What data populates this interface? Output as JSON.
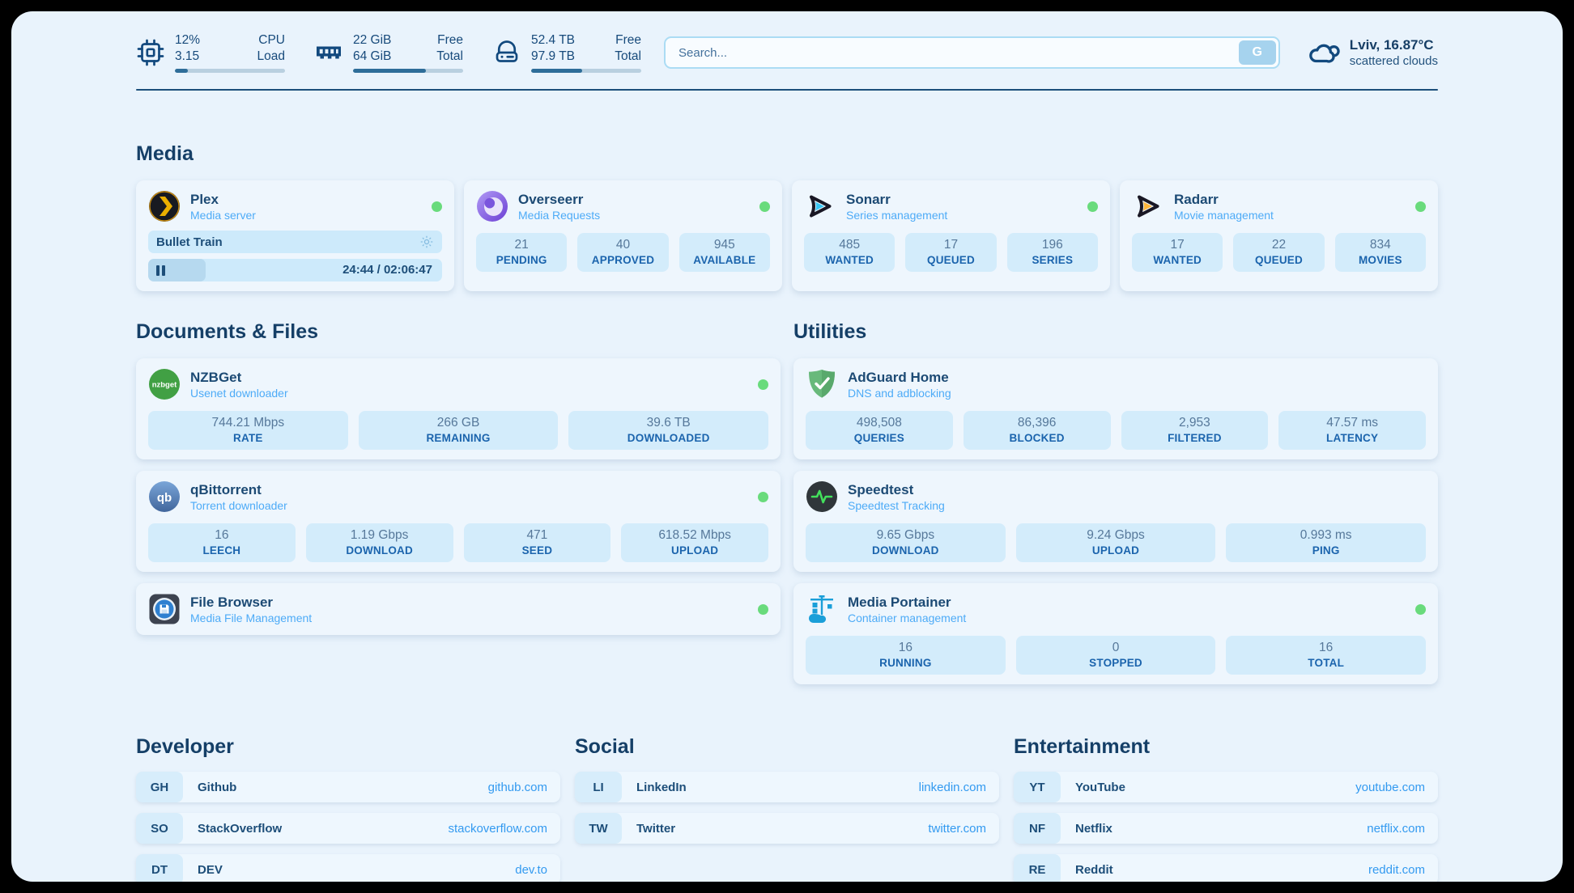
{
  "colors": {
    "page_bg": "#e9f3fc",
    "card_bg": "#eef6fd",
    "stat_box_bg": "#d3ecfb",
    "navy_text": "#1d4e79",
    "subtitle_blue": "#4dabf7",
    "url_blue": "#339af0",
    "status_online_green": "#69db7c",
    "progress_fill": "#2e6d99"
  },
  "header": {
    "cpu": {
      "value1": "12%",
      "label1": "CPU",
      "value2": "3.15",
      "label2": "Load",
      "progress": 12
    },
    "ram": {
      "value1": "22 GiB",
      "label1": "Free",
      "value2": "64 GiB",
      "label2": "Total",
      "progress": 66
    },
    "disk": {
      "value1": "52.4 TB",
      "label1": "Free",
      "value2": "97.9 TB",
      "label2": "Total",
      "progress": 46
    },
    "search": {
      "placeholder": "Search...",
      "button_label": "G"
    },
    "weather": {
      "location": "Lviv, 16.87°C",
      "condition": "scattered clouds"
    }
  },
  "media": {
    "title": "Media",
    "plex": {
      "name": "Plex",
      "subtitle": "Media server",
      "status": "online",
      "now_playing": "Bullet Train",
      "time": "24:44 / 02:06:47",
      "progress": 19.6
    },
    "overseerr": {
      "name": "Overseerr",
      "subtitle": "Media Requests",
      "status": "online",
      "stats": [
        {
          "value": "21",
          "label": "PENDING"
        },
        {
          "value": "40",
          "label": "APPROVED"
        },
        {
          "value": "945",
          "label": "AVAILABLE"
        }
      ]
    },
    "sonarr": {
      "name": "Sonarr",
      "subtitle": "Series management",
      "status": "online",
      "stats": [
        {
          "value": "485",
          "label": "WANTED"
        },
        {
          "value": "17",
          "label": "QUEUED"
        },
        {
          "value": "196",
          "label": "SERIES"
        }
      ]
    },
    "radarr": {
      "name": "Radarr",
      "subtitle": "Movie management",
      "status": "online",
      "stats": [
        {
          "value": "17",
          "label": "WANTED"
        },
        {
          "value": "22",
          "label": "QUEUED"
        },
        {
          "value": "834",
          "label": "MOVIES"
        }
      ]
    }
  },
  "documents": {
    "title": "Documents & Files",
    "nzbget": {
      "name": "NZBGet",
      "subtitle": "Usenet downloader",
      "status": "online",
      "stats": [
        {
          "value": "744.21 Mbps",
          "label": "RATE"
        },
        {
          "value": "266 GB",
          "label": "REMAINING"
        },
        {
          "value": "39.6 TB",
          "label": "DOWNLOADED"
        }
      ]
    },
    "qbittorrent": {
      "name": "qBittorrent",
      "subtitle": "Torrent downloader",
      "status": "online",
      "stats": [
        {
          "value": "16",
          "label": "LEECH"
        },
        {
          "value": "1.19 Gbps",
          "label": "DOWNLOAD"
        },
        {
          "value": "471",
          "label": "SEED"
        },
        {
          "value": "618.52 Mbps",
          "label": "UPLOAD"
        }
      ]
    },
    "filebrowser": {
      "name": "File Browser",
      "subtitle": "Media File Management",
      "status": "online"
    }
  },
  "utilities": {
    "title": "Utilities",
    "adguard": {
      "name": "AdGuard Home",
      "subtitle": "DNS and adblocking",
      "stats": [
        {
          "value": "498,508",
          "label": "QUERIES"
        },
        {
          "value": "86,396",
          "label": "BLOCKED"
        },
        {
          "value": "2,953",
          "label": "FILTERED"
        },
        {
          "value": "47.57 ms",
          "label": "LATENCY"
        }
      ]
    },
    "speedtest": {
      "name": "Speedtest",
      "subtitle": "Speedtest Tracking",
      "stats": [
        {
          "value": "9.65 Gbps",
          "label": "DOWNLOAD"
        },
        {
          "value": "9.24 Gbps",
          "label": "UPLOAD"
        },
        {
          "value": "0.993 ms",
          "label": "PING"
        }
      ]
    },
    "portainer": {
      "name": "Media Portainer",
      "subtitle": "Container management",
      "status": "online",
      "stats": [
        {
          "value": "16",
          "label": "RUNNING"
        },
        {
          "value": "0",
          "label": "STOPPED"
        },
        {
          "value": "16",
          "label": "TOTAL"
        }
      ]
    }
  },
  "bookmarks": {
    "developer": {
      "title": "Developer",
      "links": [
        {
          "tag": "GH",
          "name": "Github",
          "url": "github.com"
        },
        {
          "tag": "SO",
          "name": "StackOverflow",
          "url": "stackoverflow.com"
        },
        {
          "tag": "DT",
          "name": "DEV",
          "url": "dev.to"
        }
      ]
    },
    "social": {
      "title": "Social",
      "links": [
        {
          "tag": "LI",
          "name": "LinkedIn",
          "url": "linkedin.com"
        },
        {
          "tag": "TW",
          "name": "Twitter",
          "url": "twitter.com"
        }
      ]
    },
    "entertainment": {
      "title": "Entertainment",
      "links": [
        {
          "tag": "YT",
          "name": "YouTube",
          "url": "youtube.com"
        },
        {
          "tag": "NF",
          "name": "Netflix",
          "url": "netflix.com"
        },
        {
          "tag": "RE",
          "name": "Reddit",
          "url": "reddit.com"
        }
      ]
    }
  },
  "icons": {
    "nzbget_text": "nzbget",
    "qb_text": "qb"
  }
}
